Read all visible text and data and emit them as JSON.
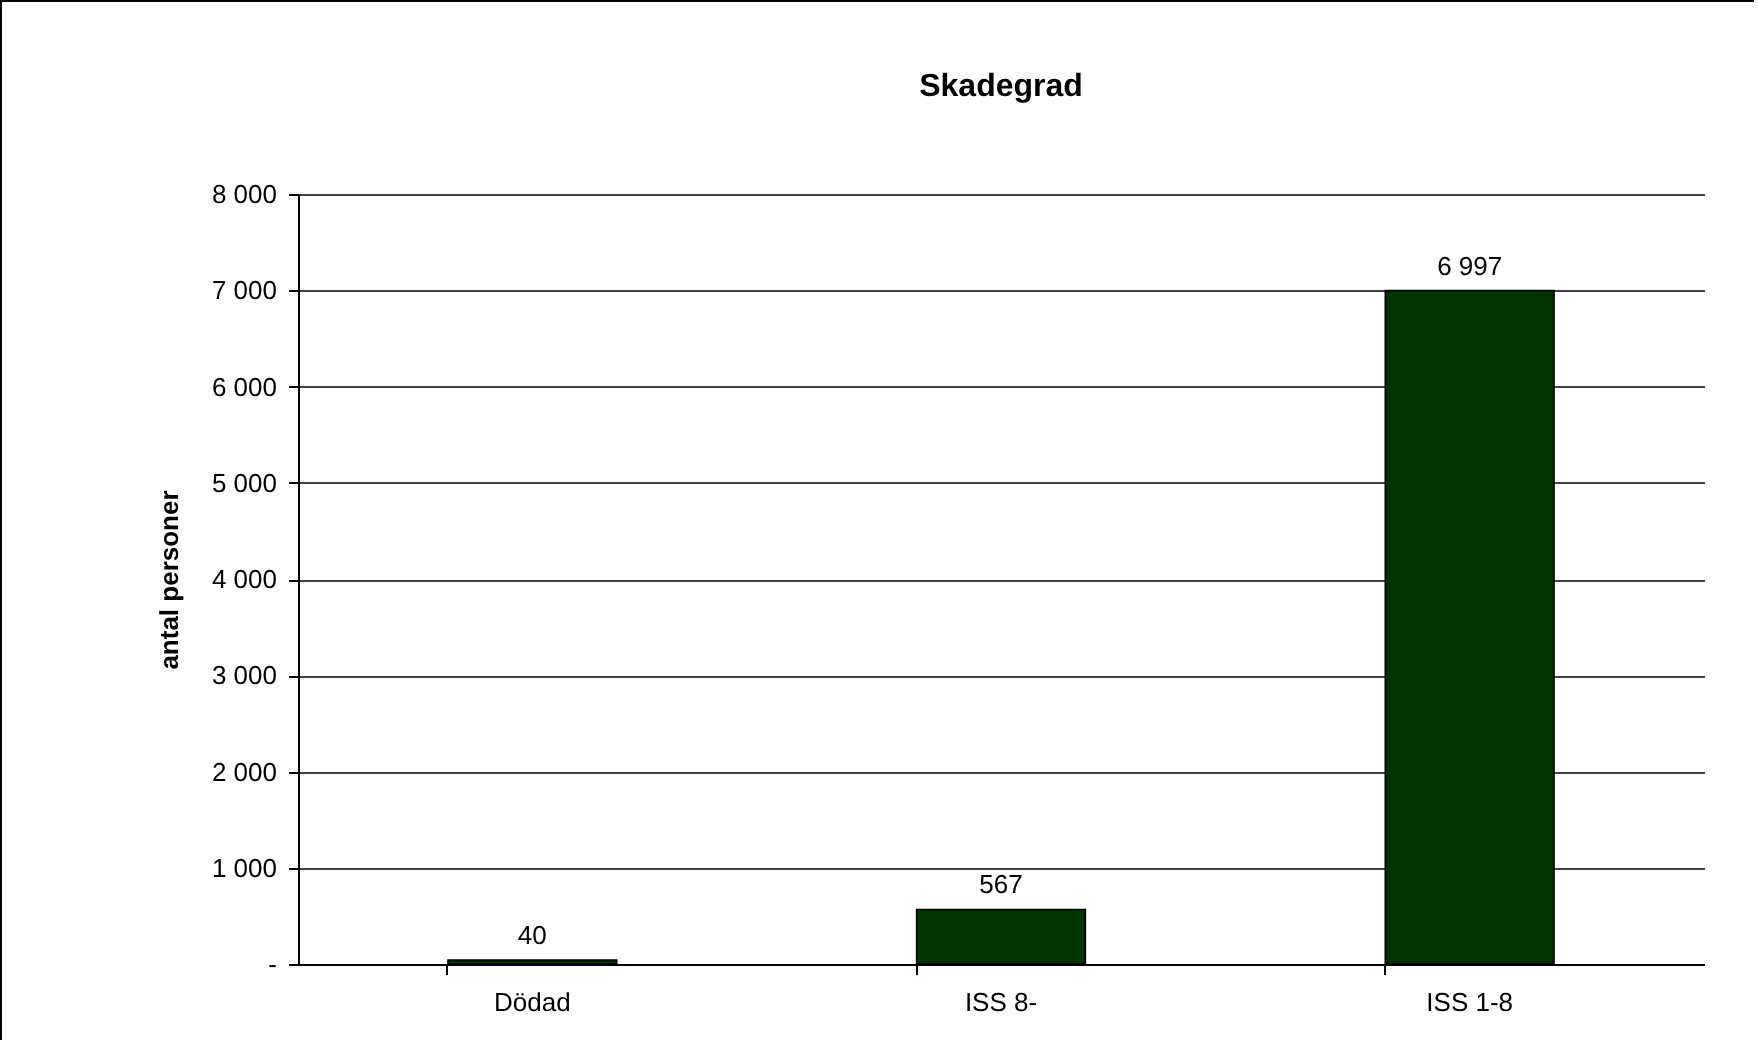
{
  "chart_data": {
    "type": "bar",
    "title": "Skadegrad",
    "ylabel": "antal personer",
    "categories": [
      "Dödad",
      "ISS 8-",
      "ISS 1-8"
    ],
    "values": [
      40,
      567,
      6997
    ],
    "value_labels": [
      "40",
      "567",
      "6 997"
    ],
    "color": "#003300",
    "ylim": [
      0,
      8000
    ],
    "yticks": [
      {
        "value": 0,
        "label": "-"
      },
      {
        "value": 1000,
        "label": "1 000"
      },
      {
        "value": 2000,
        "label": "2 000"
      },
      {
        "value": 3000,
        "label": "3 000"
      },
      {
        "value": 4000,
        "label": "4 000"
      },
      {
        "value": 5000,
        "label": "5 000"
      },
      {
        "value": 6000,
        "label": "6 000"
      },
      {
        "value": 7000,
        "label": "7 000"
      },
      {
        "value": 8000,
        "label": "8 000"
      }
    ],
    "grid": "y"
  }
}
